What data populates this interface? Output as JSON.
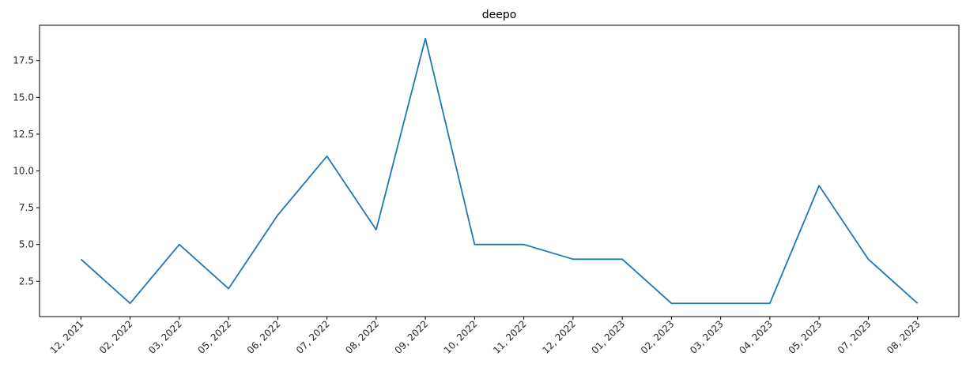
{
  "chart_data": {
    "type": "line",
    "title": "deepo",
    "xlabel": "",
    "ylabel": "",
    "categories": [
      "12, 2021",
      "02, 2022",
      "03, 2022",
      "05, 2022",
      "06, 2022",
      "07, 2022",
      "08, 2022",
      "09, 2022",
      "10, 2022",
      "11, 2022",
      "12, 2022",
      "01, 2023",
      "02, 2023",
      "03, 2023",
      "04, 2023",
      "05, 2023",
      "07, 2023",
      "08, 2023"
    ],
    "series": [
      {
        "values": [
          4,
          1,
          5,
          2,
          7,
          11,
          6,
          19,
          5,
          5,
          4,
          4,
          1,
          1,
          1,
          9,
          4,
          1
        ],
        "color": "#1f77b4"
      }
    ],
    "yticks": [
      "2.5",
      "5.0",
      "7.5",
      "10.0",
      "12.5",
      "15.0",
      "17.5"
    ],
    "ylim": [
      0.1,
      19.9
    ],
    "grid": false,
    "legend": false,
    "x_tick_rotation_deg": 45
  }
}
